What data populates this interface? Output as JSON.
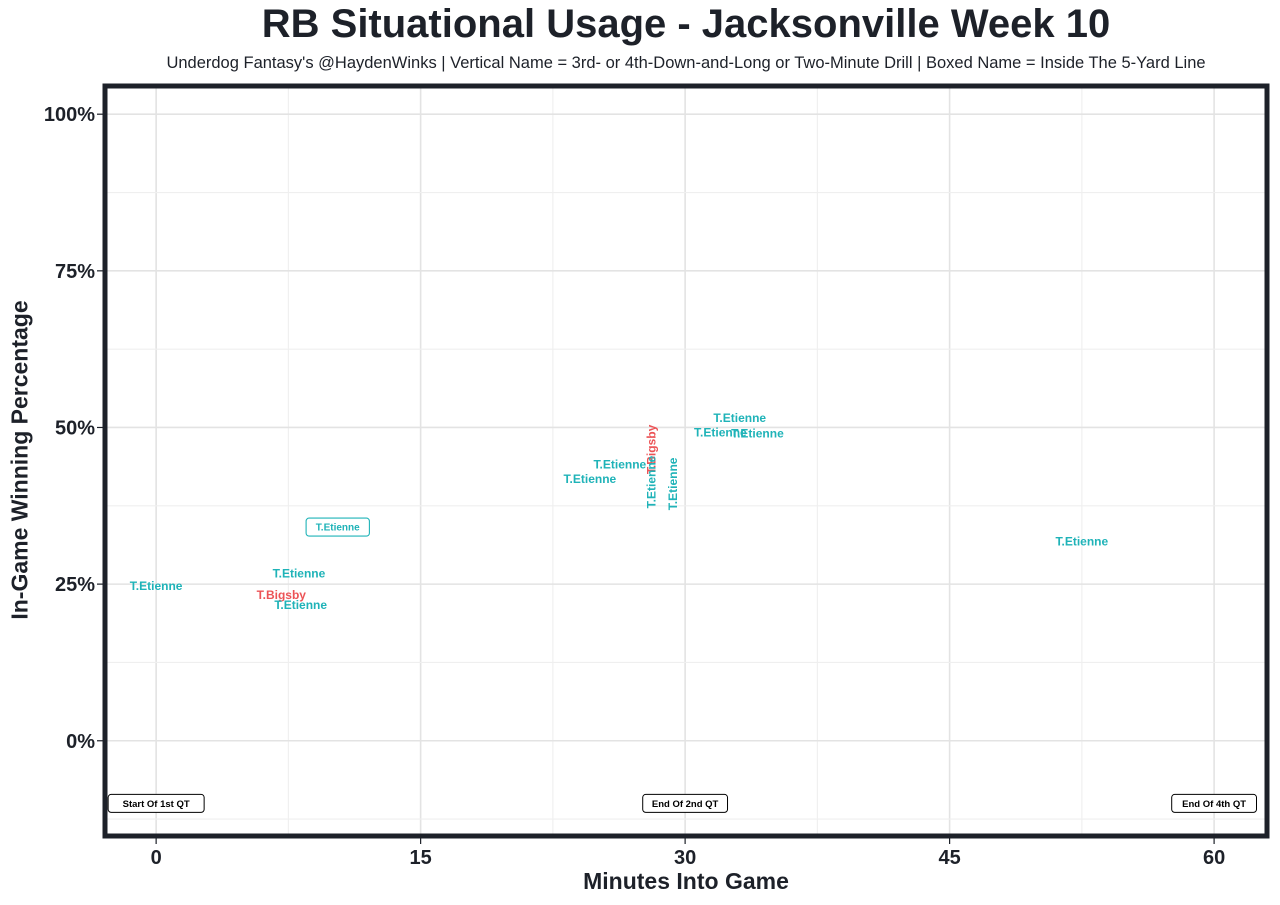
{
  "chart_data": {
    "type": "scatter",
    "title": "RB Situational Usage - Jacksonville Week 10",
    "subtitle": "Underdog Fantasy's @HaydenWinks | Vertical Name = 3rd- or 4th-Down-and-Long or Two-Minute Drill | Boxed Name = Inside The 5-Yard Line",
    "xlabel": "Minutes Into Game",
    "ylabel": "In-Game Winning Percentage",
    "xlim": [
      -2.9,
      63.0
    ],
    "ylim": [
      -0.152,
      1.045
    ],
    "x_ticks": [
      0,
      15,
      30,
      45,
      60
    ],
    "x_tick_labels": [
      "0",
      "15",
      "30",
      "45",
      "60"
    ],
    "y_ticks": [
      0,
      0.25,
      0.5,
      0.75,
      1.0
    ],
    "y_tick_labels": [
      "0%",
      "25%",
      "50%",
      "75%",
      "100%"
    ],
    "grid": true,
    "legend": "none",
    "colors": {
      "T.Etienne": "#1fb3b8",
      "T.Bigsby": "#ec5356"
    },
    "series": [
      {
        "name": "T.Etienne",
        "color": "#1fb3b8"
      },
      {
        "name": "T.Bigsby",
        "color": "#ec5356"
      }
    ],
    "points": [
      {
        "label": "T.Etienne",
        "x": 0.0,
        "y": 0.247,
        "style": "normal"
      },
      {
        "label": "T.Etienne",
        "x": 8.1,
        "y": 0.267,
        "style": "normal"
      },
      {
        "label": "T.Bigsby",
        "x": 7.1,
        "y": 0.233,
        "style": "normal"
      },
      {
        "label": "T.Etienne",
        "x": 8.2,
        "y": 0.217,
        "style": "normal"
      },
      {
        "label": "T.Etienne",
        "x": 10.3,
        "y": 0.341,
        "style": "boxed"
      },
      {
        "label": "T.Etienne",
        "x": 24.6,
        "y": 0.418,
        "style": "normal"
      },
      {
        "label": "T.Etienne",
        "x": 26.3,
        "y": 0.441,
        "style": "normal"
      },
      {
        "label": "T.Bigsby",
        "x": 28.1,
        "y": 0.465,
        "style": "vertical"
      },
      {
        "label": "T.Etienne",
        "x": 28.1,
        "y": 0.413,
        "style": "vertical"
      },
      {
        "label": "T.Etienne",
        "x": 29.3,
        "y": 0.41,
        "style": "vertical"
      },
      {
        "label": "T.Etienne",
        "x": 33.1,
        "y": 0.515,
        "style": "normal"
      },
      {
        "label": "T.Etienne",
        "x": 32.0,
        "y": 0.492,
        "style": "normal"
      },
      {
        "label": "T.Etienne",
        "x": 34.1,
        "y": 0.49,
        "style": "normal"
      },
      {
        "label": "T.Etienne",
        "x": 52.5,
        "y": 0.318,
        "style": "normal"
      }
    ],
    "annotations": [
      {
        "text": "Start Of 1st QT",
        "x": 0,
        "y": -0.1
      },
      {
        "text": "End Of 2nd QT",
        "x": 30,
        "y": -0.1
      },
      {
        "text": "End Of 4th QT",
        "x": 60,
        "y": -0.1
      }
    ]
  }
}
